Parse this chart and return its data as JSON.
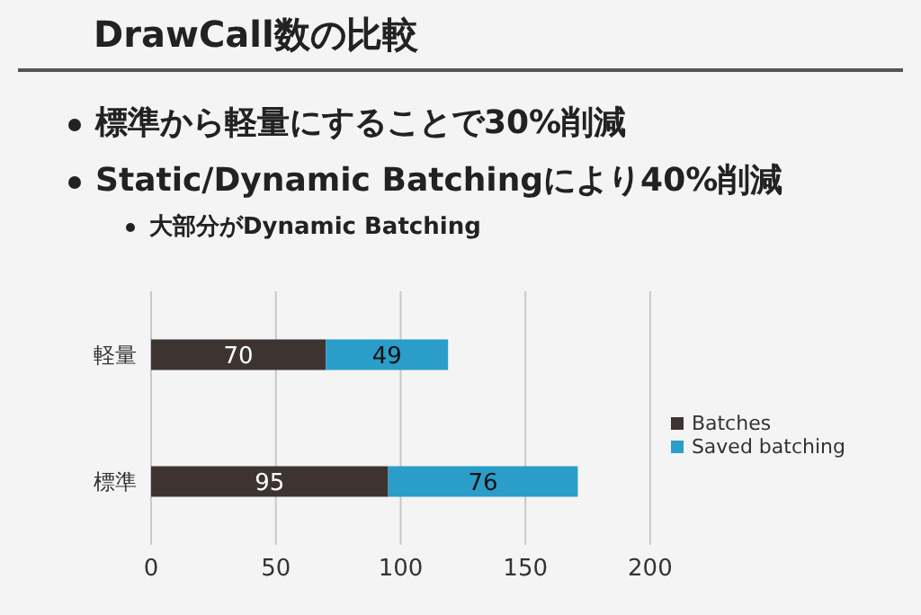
{
  "chart_data": {
    "type": "bar",
    "orientation": "horizontal",
    "stacked": true,
    "title": "DrawCall数の比較",
    "annotations": [
      "標準から軽量にすることで30%削減",
      "Static/Dynamic Batchingにより40%削減",
      "大部分がDynamic Batching"
    ],
    "categories": [
      "軽量",
      "標準"
    ],
    "series": [
      {
        "name": "Batches",
        "color": "#3d3432",
        "values": [
          70,
          95
        ]
      },
      {
        "name": "Saved batching",
        "color": "#2b9dc9",
        "values": [
          49,
          76
        ]
      }
    ],
    "xlim": [
      0,
      200
    ],
    "xticks": [
      0,
      50,
      100,
      150,
      200
    ],
    "grid": "x",
    "legend": "right",
    "data_labels": true
  }
}
